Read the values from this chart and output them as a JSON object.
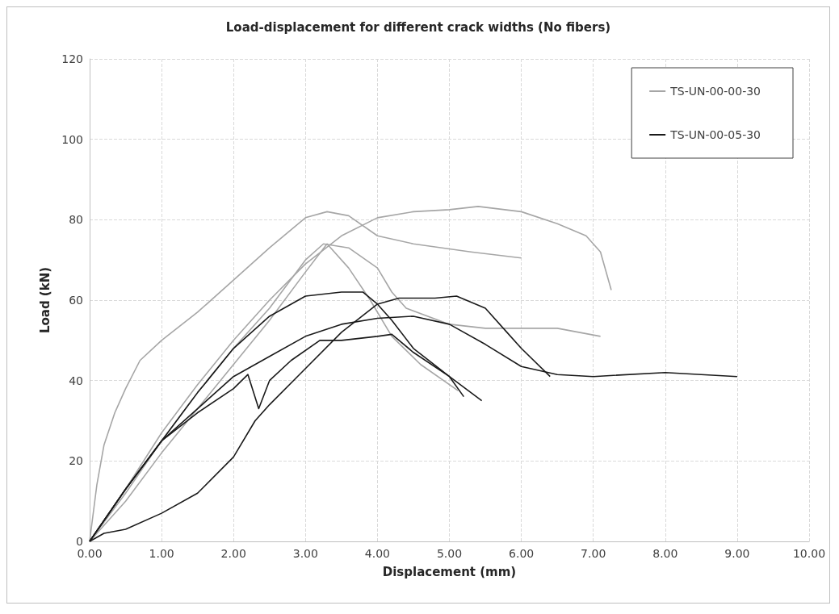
{
  "chart_data": {
    "type": "line",
    "title": "Load-displacement for different crack widths (No fibers)",
    "xlabel": "Displacement (mm)",
    "ylabel": "Load (kN)",
    "xlim": [
      0,
      10
    ],
    "ylim": [
      0,
      120
    ],
    "xticks": [
      {
        "value": 0,
        "label": "0.00"
      },
      {
        "value": 1,
        "label": "1.00"
      },
      {
        "value": 2,
        "label": "2.00"
      },
      {
        "value": 3,
        "label": "3.00"
      },
      {
        "value": 4,
        "label": "4.00"
      },
      {
        "value": 5,
        "label": "5.00"
      },
      {
        "value": 6,
        "label": "6.00"
      },
      {
        "value": 7,
        "label": "7.00"
      },
      {
        "value": 8,
        "label": "8.00"
      },
      {
        "value": 9,
        "label": "9.00"
      },
      {
        "value": 10,
        "label": "10.00"
      }
    ],
    "yticks": [
      0,
      20,
      40,
      60,
      80,
      100,
      120
    ],
    "grid": true,
    "legend": "top right",
    "marker": "none",
    "line_style": "solid",
    "series": [
      {
        "name": "TS-UN-00-00-30",
        "color": "#a6a6a6",
        "x": [
          0,
          0.1,
          0.2,
          0.35,
          0.5,
          0.7,
          1.0,
          1.5,
          2.0,
          2.5,
          3.0,
          3.3,
          3.6,
          4.0,
          4.5,
          5.3,
          6.0
        ],
        "values": [
          0,
          14,
          24,
          32,
          38,
          45,
          50,
          57,
          65,
          73,
          80.5,
          82,
          81,
          76,
          74,
          72,
          70.5
        ]
      },
      {
        "color": "#a6a6a6",
        "x": [
          0,
          0.5,
          1.0,
          1.5,
          2.0,
          2.5,
          3.0,
          3.5,
          4.0,
          4.5,
          5.0,
          5.4,
          6.0,
          6.5,
          6.9,
          7.1,
          7.25
        ],
        "values": [
          0,
          13,
          27,
          39,
          50,
          60,
          69,
          76,
          80.5,
          82,
          82.5,
          83.3,
          82,
          79,
          76,
          72,
          62.5
        ]
      },
      {
        "color": "#a6a6a6",
        "x": [
          0,
          0.5,
          1.0,
          1.5,
          2.0,
          2.5,
          3.0,
          3.25,
          3.6,
          4.0,
          4.2,
          4.4,
          5.0,
          5.5,
          6.0,
          6.5,
          7.1
        ],
        "values": [
          0,
          12,
          25,
          37,
          48,
          58,
          70,
          74,
          73,
          68,
          62,
          58,
          54,
          53,
          53,
          53,
          51
        ]
      },
      {
        "color": "#a6a6a6",
        "x": [
          0,
          0.5,
          1.0,
          1.5,
          2.0,
          2.5,
          3.0,
          3.3,
          3.6,
          3.9,
          4.2,
          4.6,
          5.12
        ],
        "values": [
          0,
          10,
          22,
          33,
          44,
          55,
          67,
          74,
          68,
          60,
          51,
          44,
          37.5
        ]
      },
      {
        "name": "TS-UN-00-05-30",
        "color": "#1a1a1a",
        "x": [
          0,
          0.5,
          1.0,
          1.5,
          2.0,
          2.5,
          3.0,
          3.5,
          3.8,
          4.0,
          4.2,
          4.5,
          5.0,
          5.45
        ],
        "values": [
          0,
          13,
          25,
          37,
          48,
          56,
          61,
          62,
          62,
          59,
          55,
          48,
          41,
          35
        ]
      },
      {
        "color": "#1a1a1a",
        "x": [
          0,
          0.2,
          0.5,
          1.0,
          1.5,
          2.0,
          2.3,
          2.5,
          3.0,
          3.5,
          4.0,
          4.3,
          4.8,
          5.1,
          5.5,
          5.8,
          6.0,
          6.4
        ],
        "values": [
          0,
          2,
          3,
          7,
          12,
          21,
          30,
          34,
          43,
          52,
          59,
          60.5,
          60.5,
          61,
          58,
          52,
          48,
          41
        ]
      },
      {
        "color": "#1a1a1a",
        "x": [
          0,
          0.5,
          1.0,
          1.5,
          2.0,
          2.2,
          2.35,
          2.5,
          2.8,
          3.2,
          3.5,
          4.0,
          4.2,
          4.5,
          5.0,
          5.2
        ],
        "values": [
          0,
          13,
          25,
          32,
          38,
          41.5,
          33,
          40,
          45,
          50,
          50,
          51,
          51.5,
          47,
          41,
          36
        ]
      },
      {
        "color": "#1a1a1a",
        "x": [
          0,
          0.5,
          1.0,
          1.5,
          2.0,
          2.5,
          3.0,
          3.5,
          4.0,
          4.5,
          5.0,
          5.5,
          6.0,
          6.5,
          7.0,
          8.0,
          9.0
        ],
        "values": [
          0,
          13,
          25,
          33,
          41,
          46,
          51,
          54,
          55.5,
          56,
          54,
          49,
          43.5,
          41.5,
          41,
          42,
          41
        ]
      }
    ]
  }
}
